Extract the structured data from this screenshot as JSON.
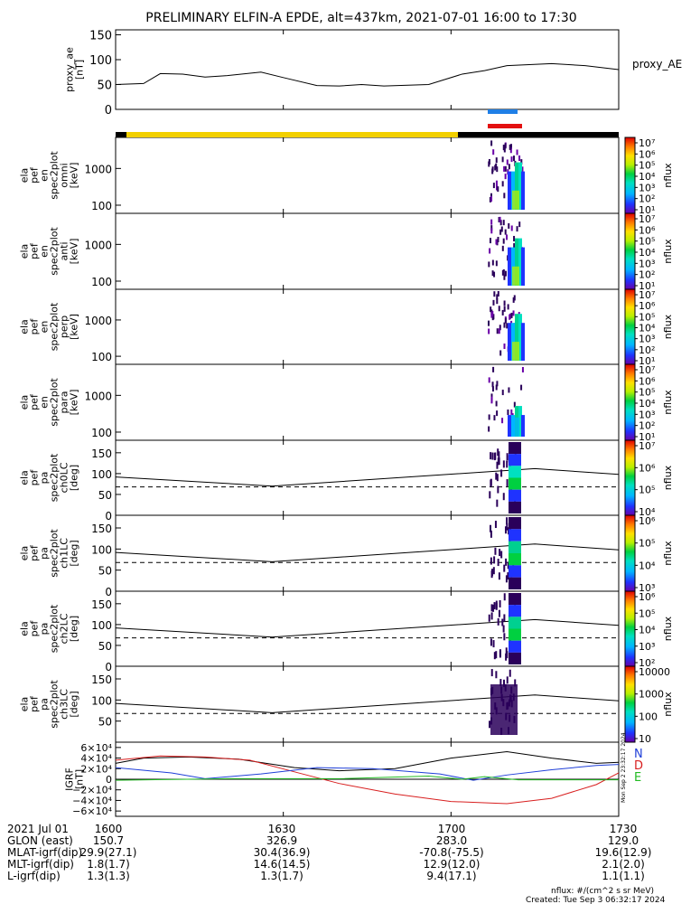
{
  "title": "PRELIMINARY ELFIN-A EPDE, alt=437km, 2021-07-01 16:00 to 17:30",
  "colors": {
    "sci_zone_yellow": "#f2d000",
    "bar_blue": "#1f7fe6",
    "bar_red": "#e31010",
    "grf_n": "#1f3fd8",
    "grf_d": "#d81f1f",
    "grf_e": "#22bb22"
  },
  "time_ticks": [
    "1600",
    "1630",
    "1700",
    "1730"
  ],
  "chart_data": [
    {
      "type": "line",
      "panel": "proxy_ae",
      "ylabel_lines": [
        "proxy_ae",
        "[nT]"
      ],
      "ylim": [
        0,
        160
      ],
      "yticks": [
        "150",
        "100",
        "50",
        "0"
      ],
      "ytick_values": [
        150,
        100,
        50,
        0
      ],
      "x_minutes": [
        0,
        5,
        8,
        12,
        16,
        20,
        26,
        30,
        36,
        40,
        44,
        48,
        56,
        62,
        66,
        70,
        78,
        84,
        90
      ],
      "values": [
        50,
        52,
        72,
        71,
        65,
        68,
        75,
        64,
        48,
        47,
        50,
        47,
        50,
        71,
        78,
        88,
        92,
        88,
        80
      ],
      "series_label": "proxy_AE"
    },
    {
      "type": "heatmap",
      "panel": "omni",
      "ylabel_lines": [
        "ela",
        "pef",
        "en",
        "spec2plot",
        "omni",
        "[keV]"
      ],
      "yscale": "log",
      "yticks": [
        "1000",
        "100"
      ],
      "colorbar": {
        "label": "nflux",
        "ticks": [
          "10⁷",
          "10⁶",
          "10⁵",
          "10⁴",
          "10³",
          "10²",
          "10¹"
        ]
      }
    },
    {
      "type": "heatmap",
      "panel": "anti",
      "ylabel_lines": [
        "ela",
        "pef",
        "en",
        "spec2plot",
        "anti",
        "[keV]"
      ],
      "yscale": "log",
      "yticks": [
        "1000",
        "100"
      ],
      "colorbar": {
        "label": "nflux",
        "ticks": [
          "10⁷",
          "10⁶",
          "10⁵",
          "10⁴",
          "10³",
          "10²",
          "10¹"
        ]
      }
    },
    {
      "type": "heatmap",
      "panel": "perp",
      "ylabel_lines": [
        "ela",
        "pef",
        "en",
        "spec2plot",
        "perp",
        "[keV]"
      ],
      "yscale": "log",
      "yticks": [
        "1000",
        "100"
      ],
      "colorbar": {
        "label": "nflux",
        "ticks": [
          "10⁷",
          "10⁶",
          "10⁵",
          "10⁴",
          "10³",
          "10²",
          "10¹"
        ]
      }
    },
    {
      "type": "heatmap",
      "panel": "para",
      "ylabel_lines": [
        "ela",
        "pef",
        "en",
        "spec2plot",
        "para",
        "[keV]"
      ],
      "yscale": "log",
      "yticks": [
        "1000",
        "100"
      ],
      "colorbar": {
        "label": "nflux",
        "ticks": [
          "10⁷",
          "10⁶",
          "10⁵",
          "10⁴",
          "10³",
          "10²",
          "10¹"
        ]
      }
    },
    {
      "type": "heatmap",
      "panel": "ch0LC",
      "ylabel_lines": [
        "ela",
        "pef",
        "pa",
        "spec2plot",
        "ch0LC",
        "[deg]"
      ],
      "ylim": [
        0,
        180
      ],
      "yticks": [
        "150",
        "100",
        "50",
        "0"
      ],
      "colorbar": {
        "label": "nflux",
        "ticks": [
          "10⁷",
          "10⁶",
          "10⁵",
          "10⁴"
        ]
      }
    },
    {
      "type": "heatmap",
      "panel": "ch1LC",
      "ylabel_lines": [
        "ela",
        "pef",
        "pa",
        "spec2plot",
        "ch1LC",
        "[deg]"
      ],
      "ylim": [
        0,
        180
      ],
      "yticks": [
        "150",
        "100",
        "50",
        "0"
      ],
      "colorbar": {
        "label": "nflux",
        "ticks": [
          "10⁶",
          "10⁵",
          "10⁴",
          "10³"
        ]
      }
    },
    {
      "type": "heatmap",
      "panel": "ch2LC",
      "ylabel_lines": [
        "ela",
        "pef",
        "pa",
        "spec2plot",
        "ch2LC",
        "[deg]"
      ],
      "ylim": [
        0,
        180
      ],
      "yticks": [
        "150",
        "100",
        "50",
        "0"
      ],
      "colorbar": {
        "label": "nflux",
        "ticks": [
          "10⁶",
          "10⁵",
          "10⁴",
          "10³",
          "10²"
        ]
      }
    },
    {
      "type": "heatmap",
      "panel": "ch3LC",
      "ylabel_lines": [
        "ela",
        "pef",
        "pa",
        "spec2plot",
        "ch3LC",
        "[deg]"
      ],
      "ylim": [
        0,
        180
      ],
      "yticks": [
        "150",
        "100",
        "50"
      ],
      "colorbar": {
        "label": "nflux",
        "ticks": [
          "10000",
          "1000",
          "100",
          "10"
        ]
      }
    },
    {
      "type": "line",
      "panel": "igrf",
      "ylabel_lines": [
        "IGRF",
        "[nT]"
      ],
      "ylim": [
        -70000,
        70000
      ],
      "yticks": [
        "6×10⁴",
        "4×10⁴",
        "2×10⁴",
        "0",
        "−2×10⁴",
        "−4×10⁴",
        "−6×10⁴"
      ],
      "ytick_values": [
        60000,
        40000,
        20000,
        0,
        -20000,
        -40000,
        -60000
      ],
      "legend": [
        "N",
        "D",
        "E"
      ]
    }
  ],
  "footer": {
    "rows": [
      {
        "label": "2021 Jul 01",
        "values": [
          "1600",
          "1630",
          "1700",
          "1730"
        ]
      },
      {
        "label": "GLON (east)",
        "values": [
          "150.7",
          "326.9",
          "283.0",
          "129.0"
        ]
      },
      {
        "label": "MLAT-igrf(dip)",
        "values": [
          "29.9(27.1)",
          "30.4(36.9)",
          "-70.8(-75.5)",
          "19.6(12.9)"
        ]
      },
      {
        "label": "MLT-igrf(dip)",
        "values": [
          "1.8(1.7)",
          "14.6(14.5)",
          "12.9(12.0)",
          "2.1(2.0)"
        ]
      },
      {
        "label": "L-igrf(dip)",
        "values": [
          "1.3(1.3)",
          "1.3(1.7)",
          "9.4(17.1)",
          "1.1(1.1)"
        ]
      }
    ],
    "units": "nflux: #/(cm^2 s sr MeV)",
    "created": "Created: Tue Sep  3 06:32:17 2024",
    "side_stamp": "Mon Sep  2 23:32:17 2024"
  }
}
